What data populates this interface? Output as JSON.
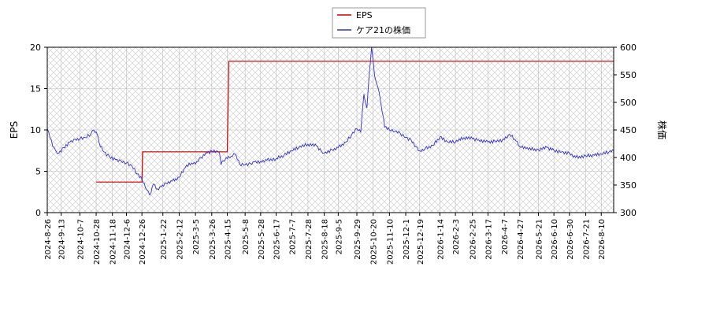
{
  "chart_data": {
    "type": "line",
    "title": "",
    "xlabel": "",
    "ylabel_left": "EPS",
    "ylabel_right": "株価",
    "y_left": {
      "min": 0,
      "max": 20,
      "ticks": [
        0,
        5,
        10,
        15,
        20
      ],
      "tick_labels": [
        "0",
        "5",
        "10",
        "15",
        "20"
      ]
    },
    "y_right": {
      "min": 300,
      "max": 600,
      "ticks": [
        300,
        350,
        400,
        450,
        500,
        550,
        600
      ],
      "tick_labels": [
        "300",
        "350",
        "400",
        "450",
        "500",
        "550",
        "600"
      ]
    },
    "x_range": [
      "2024-08-26",
      "2026-08-26"
    ],
    "x_ticks": [
      "2024-8-26",
      "2024-9-13",
      "2024-10-7",
      "2024-10-28",
      "2024-11-18",
      "2024-12-6",
      "2024-12-26",
      "2025-1-22",
      "2025-2-12",
      "2025-3-5",
      "2025-3-26",
      "2025-4-15",
      "2025-5-8",
      "2025-5-28",
      "2025-6-17",
      "2025-7-7",
      "2025-7-28",
      "2025-8-18",
      "2025-9-5",
      "2025-9-29",
      "2025-10-20",
      "2025-11-10",
      "2025-12-1",
      "2025-12-19",
      "2026-1-14",
      "2026-2-3",
      "2026-2-25",
      "2026-3-17",
      "2026-4-7",
      "2026-4-27",
      "2026-5-21",
      "2026-6-10",
      "2026-6-30",
      "2026-7-21",
      "2026-8-10"
    ],
    "grid": true,
    "legend_position": "top-center",
    "series": [
      {
        "name": "EPS",
        "axis": "left",
        "color": "#cc0000",
        "step": true,
        "points": [
          [
            "2024-10-28",
            3.7
          ],
          [
            "2024-12-26",
            3.7
          ],
          [
            "2024-12-27",
            7.35
          ],
          [
            "2025-4-15",
            7.35
          ],
          [
            "2025-4-17",
            18.3
          ],
          [
            "2026-8-26",
            18.3
          ]
        ]
      },
      {
        "name": "ケア21の株価",
        "axis": "right",
        "color": "#3333cc",
        "points": [
          [
            "2024-8-26",
            452
          ],
          [
            "2024-8-28",
            445
          ],
          [
            "2024-9-2",
            420
          ],
          [
            "2024-9-6",
            412
          ],
          [
            "2024-9-10",
            408
          ],
          [
            "2024-9-16",
            418
          ],
          [
            "2024-9-24",
            428
          ],
          [
            "2024-10-1",
            433
          ],
          [
            "2024-10-7",
            434
          ],
          [
            "2024-10-14",
            436
          ],
          [
            "2024-10-21",
            442
          ],
          [
            "2024-10-25",
            450
          ],
          [
            "2024-10-30",
            440
          ],
          [
            "2024-11-1",
            426
          ],
          [
            "2024-11-7",
            410
          ],
          [
            "2024-11-14",
            402
          ],
          [
            "2024-11-22",
            396
          ],
          [
            "2024-11-29",
            394
          ],
          [
            "2024-12-6",
            390
          ],
          [
            "2024-12-13",
            385
          ],
          [
            "2024-12-20",
            370
          ],
          [
            "2024-12-26",
            360
          ],
          [
            "2025-1-1",
            342
          ],
          [
            "2025-1-5",
            332
          ],
          [
            "2025-1-10",
            352
          ],
          [
            "2025-1-15",
            343
          ],
          [
            "2025-1-20",
            347
          ],
          [
            "2025-1-26",
            354
          ],
          [
            "2025-2-3",
            357
          ],
          [
            "2025-2-12",
            364
          ],
          [
            "2025-2-20",
            382
          ],
          [
            "2025-2-28",
            390
          ],
          [
            "2025-3-5",
            388
          ],
          [
            "2025-3-12",
            400
          ],
          [
            "2025-3-20",
            408
          ],
          [
            "2025-3-26",
            412
          ],
          [
            "2025-4-1",
            412
          ],
          [
            "2025-4-5",
            408
          ],
          [
            "2025-4-7",
            387
          ],
          [
            "2025-4-10",
            394
          ],
          [
            "2025-4-15",
            398
          ],
          [
            "2025-4-20",
            402
          ],
          [
            "2025-4-25",
            406
          ],
          [
            "2025-5-1",
            388
          ],
          [
            "2025-5-8",
            387
          ],
          [
            "2025-5-15",
            389
          ],
          [
            "2025-5-20",
            392
          ],
          [
            "2025-5-28",
            393
          ],
          [
            "2025-6-5",
            395
          ],
          [
            "2025-6-17",
            398
          ],
          [
            "2025-6-27",
            404
          ],
          [
            "2025-7-7",
            412
          ],
          [
            "2025-7-16",
            418
          ],
          [
            "2025-7-28",
            424
          ],
          [
            "2025-8-8",
            421
          ],
          [
            "2025-8-14",
            412
          ],
          [
            "2025-8-18",
            408
          ],
          [
            "2025-8-28",
            414
          ],
          [
            "2025-9-5",
            418
          ],
          [
            "2025-9-15",
            428
          ],
          [
            "2025-9-22",
            440
          ],
          [
            "2025-9-29",
            452
          ],
          [
            "2025-10-4",
            446
          ],
          [
            "2025-10-8",
            515
          ],
          [
            "2025-10-12",
            490
          ],
          [
            "2025-10-15",
            552
          ],
          [
            "2025-10-18",
            600
          ],
          [
            "2025-10-22",
            548
          ],
          [
            "2025-10-26",
            528
          ],
          [
            "2025-10-30",
            498
          ],
          [
            "2025-11-4",
            455
          ],
          [
            "2025-11-10",
            450
          ],
          [
            "2025-11-17",
            447
          ],
          [
            "2025-11-24",
            444
          ],
          [
            "2025-12-1",
            436
          ],
          [
            "2025-12-8",
            432
          ],
          [
            "2025-12-14",
            420
          ],
          [
            "2025-12-19",
            412
          ],
          [
            "2025-12-26",
            416
          ],
          [
            "2026-1-5",
            422
          ],
          [
            "2026-1-14",
            437
          ],
          [
            "2026-1-24",
            428
          ],
          [
            "2026-2-3",
            428
          ],
          [
            "2026-2-14",
            436
          ],
          [
            "2026-2-25",
            434
          ],
          [
            "2026-3-5",
            432
          ],
          [
            "2026-3-17",
            428
          ],
          [
            "2026-3-26",
            430
          ],
          [
            "2026-4-7",
            432
          ],
          [
            "2026-4-14",
            442
          ],
          [
            "2026-4-22",
            430
          ],
          [
            "2026-4-27",
            420
          ],
          [
            "2026-5-5",
            416
          ],
          [
            "2026-5-21",
            414
          ],
          [
            "2026-6-1",
            418
          ],
          [
            "2026-6-10",
            413
          ],
          [
            "2026-6-20",
            410
          ],
          [
            "2026-6-30",
            408
          ],
          [
            "2026-7-8",
            400
          ],
          [
            "2026-7-21",
            403
          ],
          [
            "2026-8-1",
            404
          ],
          [
            "2026-8-10",
            406
          ],
          [
            "2026-8-20",
            410
          ],
          [
            "2026-8-26",
            412
          ]
        ]
      }
    ]
  }
}
